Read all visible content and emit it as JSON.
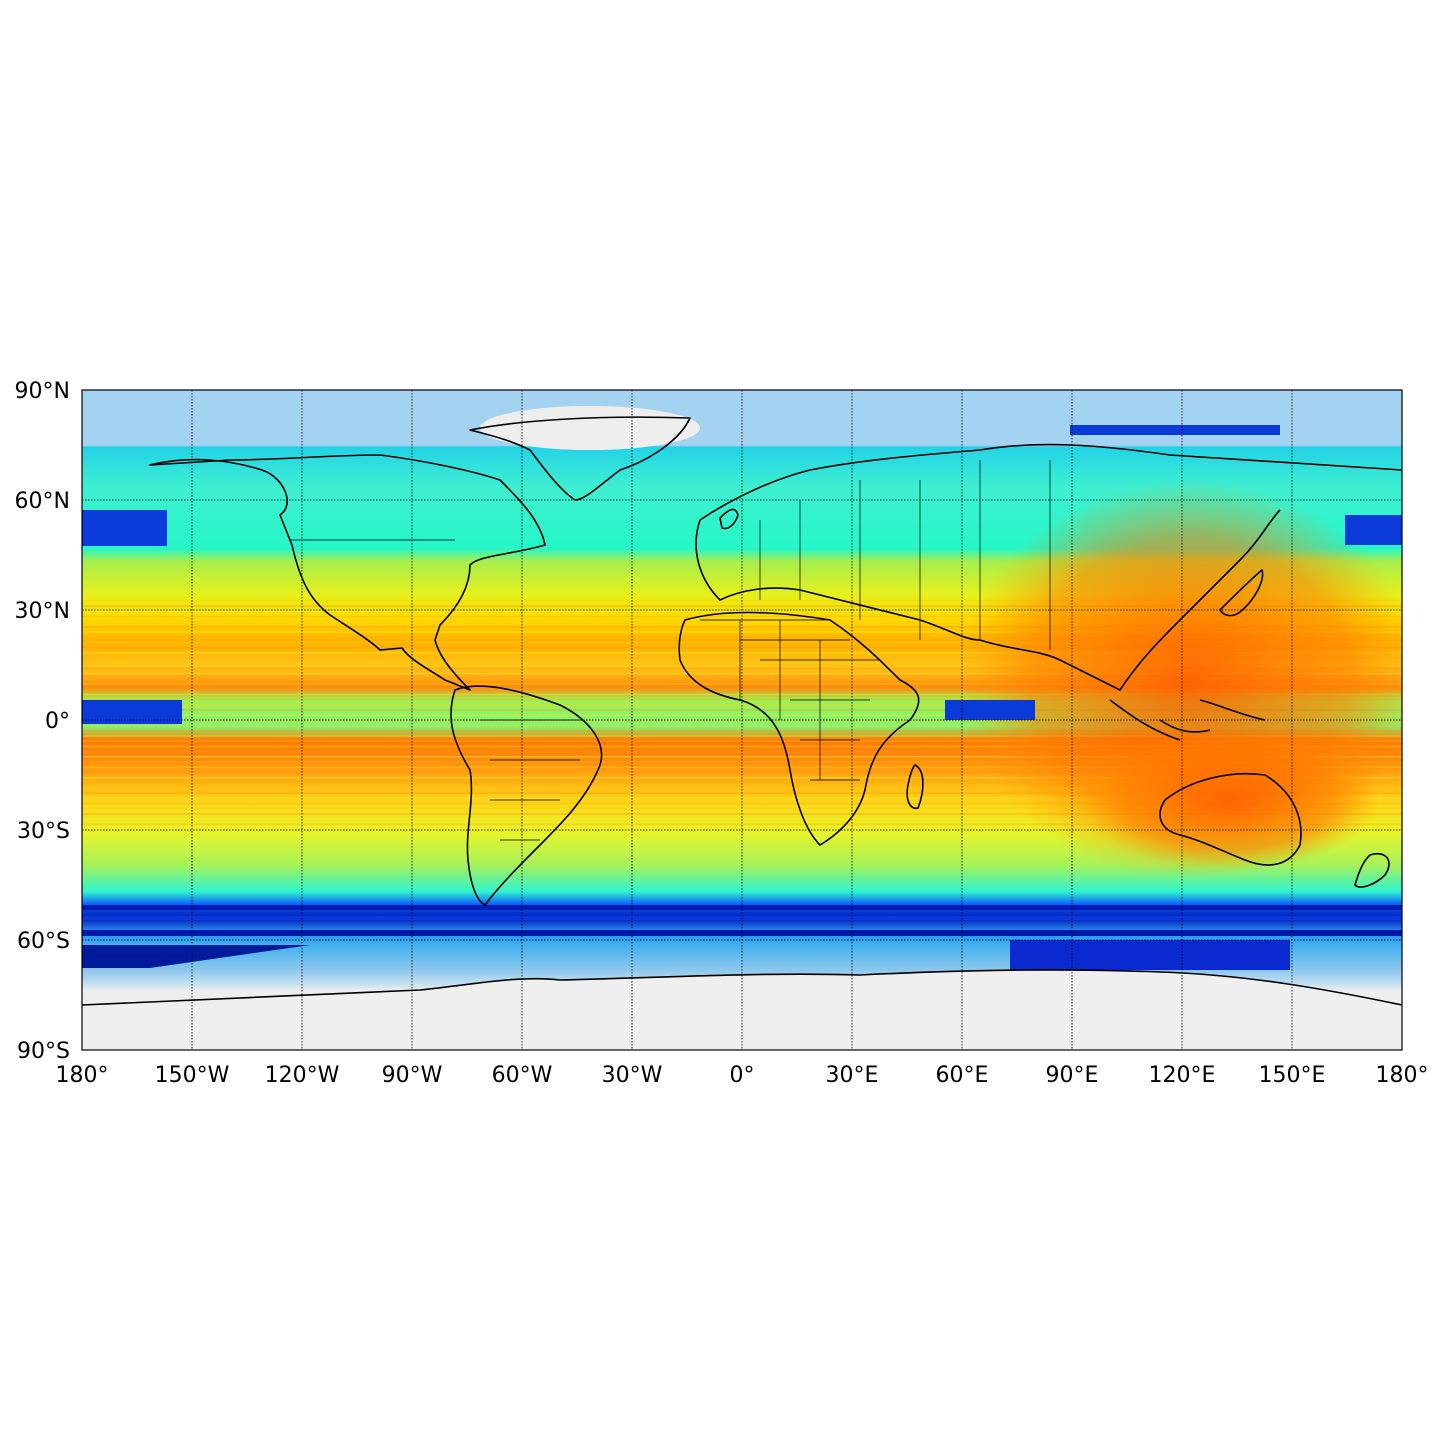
{
  "map": {
    "projection": "equirectangular",
    "extent": {
      "lon": [
        -180,
        180
      ],
      "lat": [
        -90,
        90
      ]
    },
    "gridlines": {
      "lon_step": 30,
      "lat_step": 30,
      "style": "dotted"
    },
    "colormap": "jet",
    "lat_ticks": [
      {
        "value": 90,
        "label": "90°N"
      },
      {
        "value": 60,
        "label": "60°N"
      },
      {
        "value": 30,
        "label": "30°N"
      },
      {
        "value": 0,
        "label": "0°"
      },
      {
        "value": -30,
        "label": "30°S"
      },
      {
        "value": -60,
        "label": "60°S"
      },
      {
        "value": -90,
        "label": "90°S"
      }
    ],
    "lon_ticks": [
      {
        "value": -180,
        "label": "180°"
      },
      {
        "value": -150,
        "label": "150°W"
      },
      {
        "value": -120,
        "label": "120°W"
      },
      {
        "value": -90,
        "label": "90°W"
      },
      {
        "value": -60,
        "label": "60°W"
      },
      {
        "value": -30,
        "label": "30°W"
      },
      {
        "value": 0,
        "label": "0°"
      },
      {
        "value": 30,
        "label": "30°E"
      },
      {
        "value": 60,
        "label": "60°E"
      },
      {
        "value": 90,
        "label": "90°E"
      },
      {
        "value": 120,
        "label": "120°E"
      },
      {
        "value": 150,
        "label": "150°E"
      },
      {
        "value": 180,
        "label": "180°"
      }
    ],
    "colors": {
      "ocean_background": "#8fc3ea",
      "ice": "#ececec",
      "frame": "#000000",
      "coastline": "#000000"
    }
  }
}
